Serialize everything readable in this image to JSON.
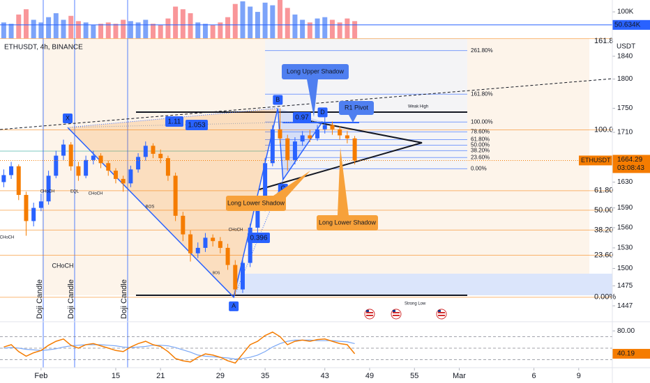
{
  "chart_data": [
    {
      "type": "candlestick",
      "title": "ETHUSDT, 4h, BINANCE",
      "currency": "USDT",
      "symbol": "ETHUSDT",
      "countdown": "03:08:43",
      "log_scale": true,
      "xlim": [
        -0.5,
        81.5
      ],
      "xticks": [
        {
          "value": 5,
          "label": "Feb"
        },
        15,
        21,
        29,
        35,
        43,
        49,
        55,
        {
          "value": 61,
          "label": "Mar"
        },
        {
          "value": 71,
          "label": "6"
        },
        {
          "value": 77,
          "label": "9"
        }
      ],
      "ylim": [
        1425,
        1872
      ],
      "yticks": [
        1447,
        1475,
        1500,
        1530,
        1560,
        1590,
        1630,
        1710,
        1750,
        1800,
        1840
      ],
      "up_color": "#2962ff",
      "down_color": "#f57c00",
      "open": [
        1630,
        1641,
        1655,
        1610,
        1570,
        1590,
        1600,
        1640,
        1672,
        1690,
        1655,
        1640,
        1665,
        1672,
        1660,
        1648,
        1635,
        1628,
        1650,
        1670,
        1688,
        1675,
        1668,
        1640,
        1578,
        1550,
        1522,
        1530,
        1545,
        1540,
        1530,
        1505,
        1470,
        1508,
        1560,
        1590,
        1660,
        1715,
        1700,
        1665,
        1695,
        1705,
        1700,
        1715,
        1722,
        1715,
        1705,
        1700
      ],
      "high": [
        1650,
        1662,
        1658,
        1615,
        1598,
        1612,
        1648,
        1680,
        1698,
        1694,
        1662,
        1672,
        1680,
        1676,
        1664,
        1652,
        1640,
        1656,
        1676,
        1695,
        1692,
        1682,
        1672,
        1645,
        1584,
        1556,
        1538,
        1552,
        1550,
        1546,
        1536,
        1512,
        1515,
        1566,
        1598,
        1668,
        1722,
        1750,
        1706,
        1702,
        1712,
        1714,
        1722,
        1735,
        1728,
        1720,
        1712,
        1704
      ],
      "low": [
        1622,
        1635,
        1602,
        1548,
        1562,
        1585,
        1595,
        1636,
        1665,
        1648,
        1632,
        1636,
        1658,
        1652,
        1640,
        1628,
        1615,
        1622,
        1645,
        1664,
        1668,
        1660,
        1632,
        1570,
        1540,
        1510,
        1515,
        1524,
        1532,
        1522,
        1498,
        1462,
        1465,
        1502,
        1552,
        1585,
        1655,
        1692,
        1648,
        1658,
        1688,
        1694,
        1696,
        1708,
        1706,
        1698,
        1692,
        1658
      ],
      "close": [
        1641,
        1655,
        1610,
        1570,
        1590,
        1600,
        1640,
        1672,
        1690,
        1655,
        1640,
        1665,
        1672,
        1660,
        1648,
        1635,
        1628,
        1650,
        1670,
        1688,
        1675,
        1668,
        1640,
        1578,
        1550,
        1522,
        1530,
        1545,
        1540,
        1530,
        1505,
        1470,
        1508,
        1560,
        1590,
        1660,
        1715,
        1700,
        1665,
        1695,
        1705,
        1700,
        1715,
        1722,
        1715,
        1705,
        1700,
        1664.29
      ],
      "fib_orange": {
        "color": "#f57c00",
        "low": 1459,
        "high": 1714,
        "levels": [
          {
            "value": 161.8,
            "label": "161.8"
          },
          {
            "value": 100,
            "label": "100.0"
          },
          {
            "value": 61.8,
            "label": "61.80"
          },
          {
            "value": 50,
            "label": "50.00"
          },
          {
            "value": 38.2,
            "label": "38.20"
          },
          {
            "value": 23.6,
            "label": "23.60"
          },
          {
            "value": 0,
            "label": "0.00%"
          }
        ]
      },
      "fib_blue": {
        "color": "#2962ff",
        "low": 1651,
        "high": 1727,
        "levels": [
          {
            "value": 261.8,
            "label": "261.80%"
          },
          {
            "value": 161.8,
            "label": "161.80%"
          },
          {
            "value": 100,
            "label": "100.00%"
          },
          {
            "value": 78.6,
            "label": "78.60%"
          },
          {
            "value": 61.8,
            "label": "61.80%"
          },
          {
            "value": 50,
            "label": "50.00%"
          },
          {
            "value": 38.2,
            "label": "38.20%"
          },
          {
            "value": 23.6,
            "label": "23.60%"
          },
          {
            "value": 0,
            "label": "0.00%"
          }
        ]
      },
      "pattern": {
        "points": [
          {
            "label": "X",
            "x": 8.56,
            "price": 1718
          },
          {
            "label": "A",
            "x": 30.8,
            "price": 1459
          },
          {
            "label": "B",
            "x": 36.7,
            "price": 1750
          },
          {
            "label": "C",
            "x": 37.4,
            "price": 1634
          },
          {
            "label": "D",
            "x": 42.7,
            "price": 1728
          }
        ],
        "ratios": [
          1.11,
          1.053,
          0.97,
          0.396
        ]
      },
      "annotations": [
        "Long Upper Shadow",
        "R1 Pivot",
        "Weak High",
        "Long Lower Shadow",
        "Long Lower Shadow",
        "Strong Low"
      ],
      "structure_labels": [
        "CHoCH",
        "EQL",
        "CHoCH",
        "BOS",
        "CHoCH",
        "CHoCH",
        "CHoCH",
        "BOS"
      ],
      "doji_labels": [
        "Doji Candle",
        "Doji Candle",
        "Doji Candle"
      ]
    },
    {
      "type": "bar",
      "values": [
        60,
        55,
        90,
        110,
        70,
        60,
        80,
        95,
        70,
        85,
        65,
        60,
        50,
        55,
        60,
        55,
        70,
        65,
        60,
        70,
        55,
        50,
        75,
        120,
        110,
        95,
        60,
        55,
        50,
        60,
        80,
        130,
        140,
        120,
        100,
        135,
        125,
        145,
        115,
        90,
        70,
        60,
        75,
        80,
        70,
        60,
        75,
        65
      ],
      "ylim": [
        0,
        145
      ],
      "yticks": [
        {
          "value": 100,
          "label": "100K"
        }
      ],
      "marker": {
        "value": 50.634,
        "label": "50.634K"
      },
      "color": "#2962ff"
    },
    {
      "type": "line",
      "ylim": [
        16,
        96
      ],
      "yticks": [
        {
          "value": 80,
          "label": "80.00"
        }
      ],
      "levels": [
        70,
        50,
        30
      ],
      "series": [
        {
          "color": "#f57c00",
          "values": [
            52,
            56,
            44,
            36,
            42,
            46,
            55,
            62,
            66,
            55,
            50,
            56,
            58,
            54,
            50,
            46,
            44,
            52,
            58,
            62,
            56,
            53,
            44,
            32,
            28,
            26,
            34,
            40,
            38,
            34,
            28,
            24,
            40,
            56,
            62,
            72,
            78,
            70,
            56,
            62,
            64,
            62,
            65,
            66,
            62,
            58,
            56,
            40.19
          ]
        },
        {
          "color": "#7aa7f5",
          "values": [
            50,
            51,
            50,
            48,
            47,
            46,
            47,
            49,
            52,
            54,
            55,
            56,
            56,
            56,
            55,
            54,
            52,
            51,
            52,
            53,
            55,
            55,
            54,
            51,
            47,
            43,
            38,
            36,
            35,
            34,
            33,
            31,
            32,
            34,
            38,
            44,
            52,
            58,
            62,
            64,
            64,
            64,
            63,
            63,
            63,
            62,
            61,
            58
          ]
        }
      ]
    }
  ]
}
